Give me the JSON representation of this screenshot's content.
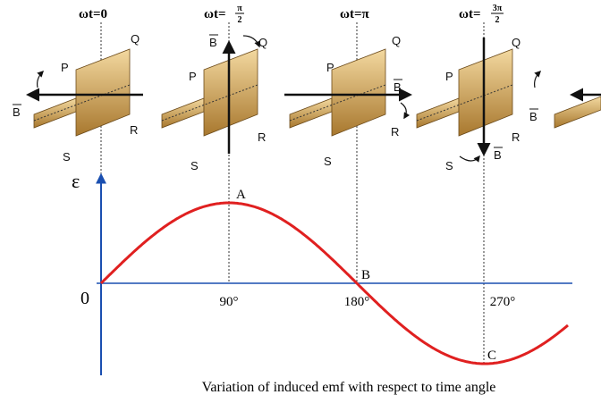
{
  "phases": [
    {
      "prefix": "ωt=",
      "value": "0"
    },
    {
      "prefix": "ωt=",
      "numerator": "π",
      "denominator": "2"
    },
    {
      "prefix": "ωt=",
      "value": "π"
    },
    {
      "prefix": "ωt=",
      "numerator": "3π",
      "denominator": "2"
    }
  ],
  "coil_labels": {
    "p": "P",
    "q": "Q",
    "r": "R",
    "s": "S",
    "field": "B"
  },
  "graph": {
    "y_label": "ε",
    "origin": "0",
    "angles": [
      "90°",
      "180°",
      "270°"
    ],
    "points": [
      "A",
      "B",
      "C"
    ]
  },
  "caption": "Variation of induced emf with respect to time angle"
}
